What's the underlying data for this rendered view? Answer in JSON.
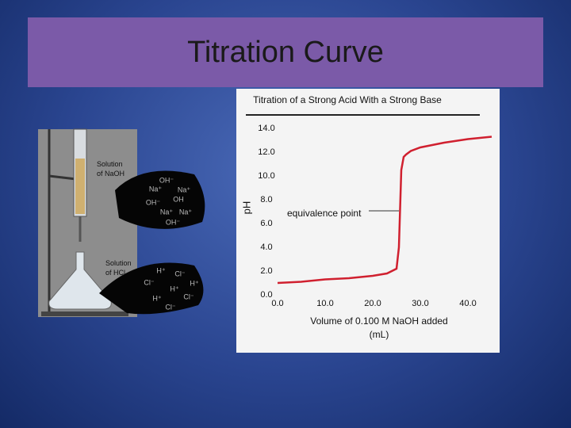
{
  "slide": {
    "title": "Titration Curve"
  },
  "illustration": {
    "burette_label": "Solution of NaOH",
    "flask_label": "Solution of HCl",
    "base_ions": [
      "OH⁻",
      "Na⁺",
      "Na⁺",
      "OH",
      "OH⁻",
      "Na⁺",
      "Na⁺",
      "OH⁻"
    ],
    "acid_ions": [
      "H⁺",
      "Cl⁻",
      "Cl⁻",
      "H⁺",
      "H⁺",
      "H⁺",
      "Cl⁻",
      "Cl⁻"
    ]
  },
  "chart_data": {
    "type": "line",
    "title": "Titration of a Strong Acid With a Strong Base",
    "xlabel": "Volume of 0.100 M NaOH added (mL)",
    "ylabel": "pH",
    "x": [
      0,
      5,
      10,
      15,
      20,
      23,
      25,
      25.5,
      26,
      26.5,
      27,
      28,
      30,
      35,
      40,
      45
    ],
    "series": [
      {
        "color": "#d0202f",
        "values": [
          1.0,
          1.1,
          1.3,
          1.4,
          1.6,
          1.8,
          2.2,
          4.0,
          10.5,
          11.6,
          11.8,
          12.1,
          12.4,
          12.8,
          13.1,
          13.3
        ]
      }
    ],
    "xlim": [
      0,
      45
    ],
    "ylim": [
      0,
      14
    ],
    "xticks": [
      {
        "value": 0,
        "label": "0.0"
      },
      {
        "value": 10,
        "label": "10.0"
      },
      {
        "value": 20,
        "label": "20.0"
      },
      {
        "value": 30,
        "label": "30.0"
      },
      {
        "value": 40,
        "label": "40.0"
      }
    ],
    "yticks": [
      {
        "value": 0,
        "label": "0.0"
      },
      {
        "value": 2,
        "label": "2.0"
      },
      {
        "value": 4,
        "label": "4.0"
      },
      {
        "value": 6,
        "label": "6.0"
      },
      {
        "value": 8,
        "label": "8.0"
      },
      {
        "value": 10,
        "label": "10.0"
      },
      {
        "value": 12,
        "label": "12.0"
      },
      {
        "value": 14,
        "label": "14.0"
      }
    ],
    "annotation": "equivalence point"
  }
}
